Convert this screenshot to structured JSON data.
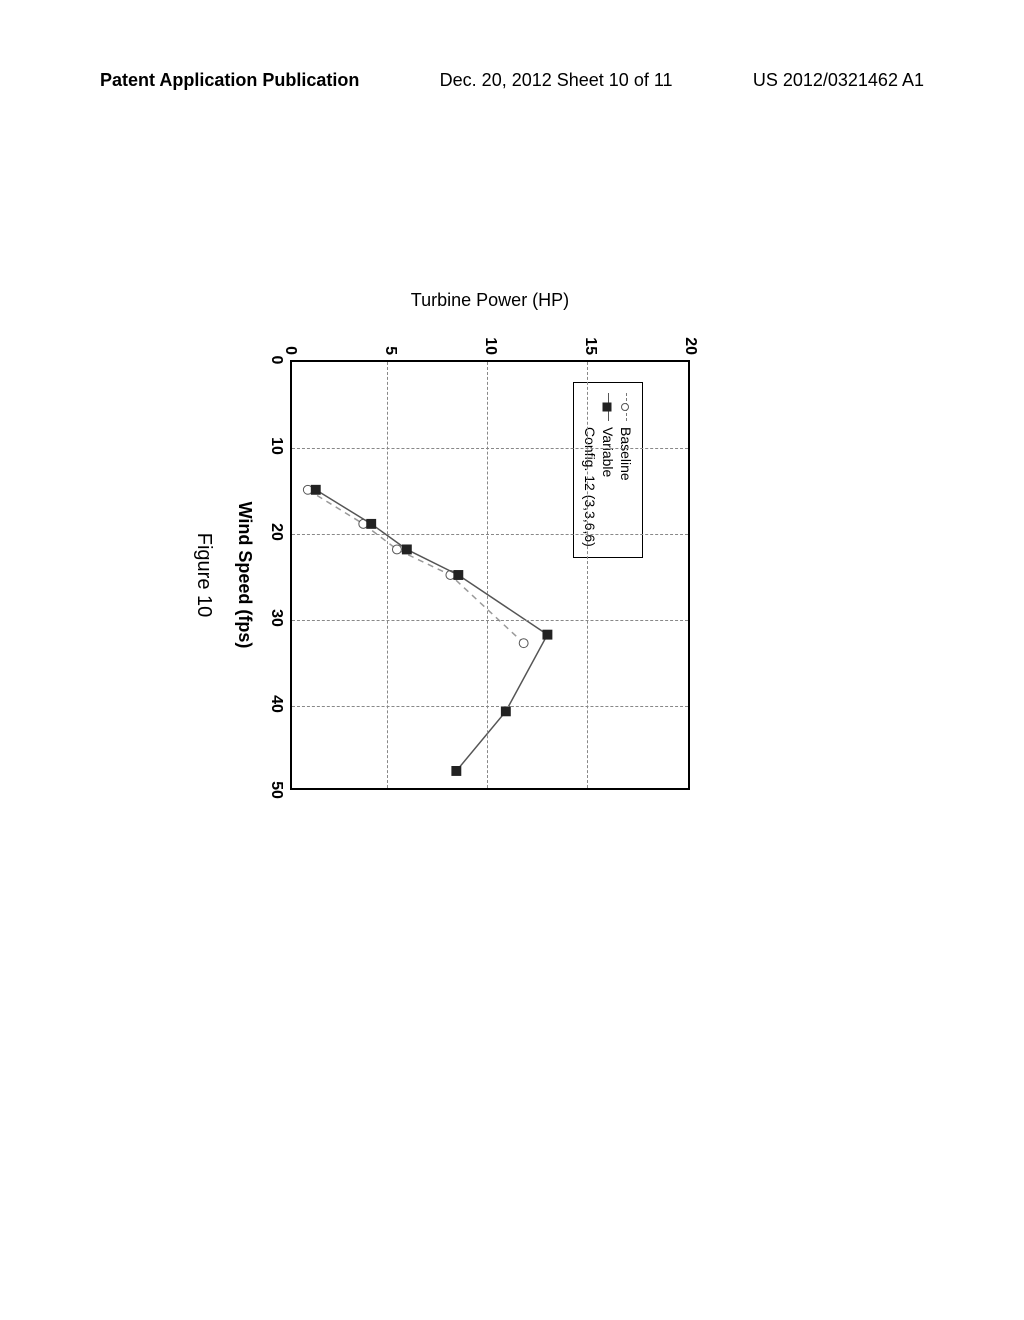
{
  "header": {
    "left": "Patent Application Publication",
    "center": "Dec. 20, 2012  Sheet 10 of 11",
    "right": "US 2012/0321462 A1"
  },
  "chart": {
    "type": "line",
    "xlabel": "Wind Speed (fps)",
    "ylabel": "Turbine Power (HP)",
    "figure_label": "Figure 10",
    "xlim": [
      0,
      50
    ],
    "ylim": [
      0,
      20
    ],
    "xtick_step": 10,
    "ytick_step": 5,
    "xticks": [
      0,
      10,
      20,
      30,
      40,
      50
    ],
    "yticks": [
      0,
      5,
      10,
      15,
      20
    ],
    "grid_color": "#888888",
    "border_color": "#000000",
    "background_color": "#ffffff",
    "label_fontsize": 18,
    "tick_fontsize": 16,
    "legend": {
      "items": [
        {
          "label": "Baseline",
          "marker": "circle",
          "line_style": "dashed",
          "color": "#777777"
        },
        {
          "label": "Variable",
          "marker": "square",
          "line_style": "solid",
          "color": "#333333"
        },
        {
          "label": "Config. 12 (3,3,6,6)",
          "marker": "none",
          "line_style": "none",
          "color": "#000000"
        }
      ],
      "position": "upper-left",
      "box_border": "#000000"
    },
    "series": {
      "baseline": {
        "x": [
          15,
          19,
          22,
          25,
          33
        ],
        "y": [
          0.8,
          3.6,
          5.3,
          8.0,
          11.7
        ],
        "marker": "circle",
        "marker_size": 9,
        "line_color": "#999999",
        "line_style": "dashed",
        "marker_fill": "#ffffff",
        "marker_stroke": "#555555"
      },
      "variable": {
        "x": [
          15,
          19,
          22,
          25,
          32,
          41,
          48
        ],
        "y": [
          1.2,
          4.0,
          5.8,
          8.4,
          12.9,
          10.8,
          8.3
        ],
        "marker": "square",
        "marker_size": 10,
        "line_color": "#555555",
        "line_style": "solid",
        "marker_fill": "#222222"
      }
    }
  }
}
